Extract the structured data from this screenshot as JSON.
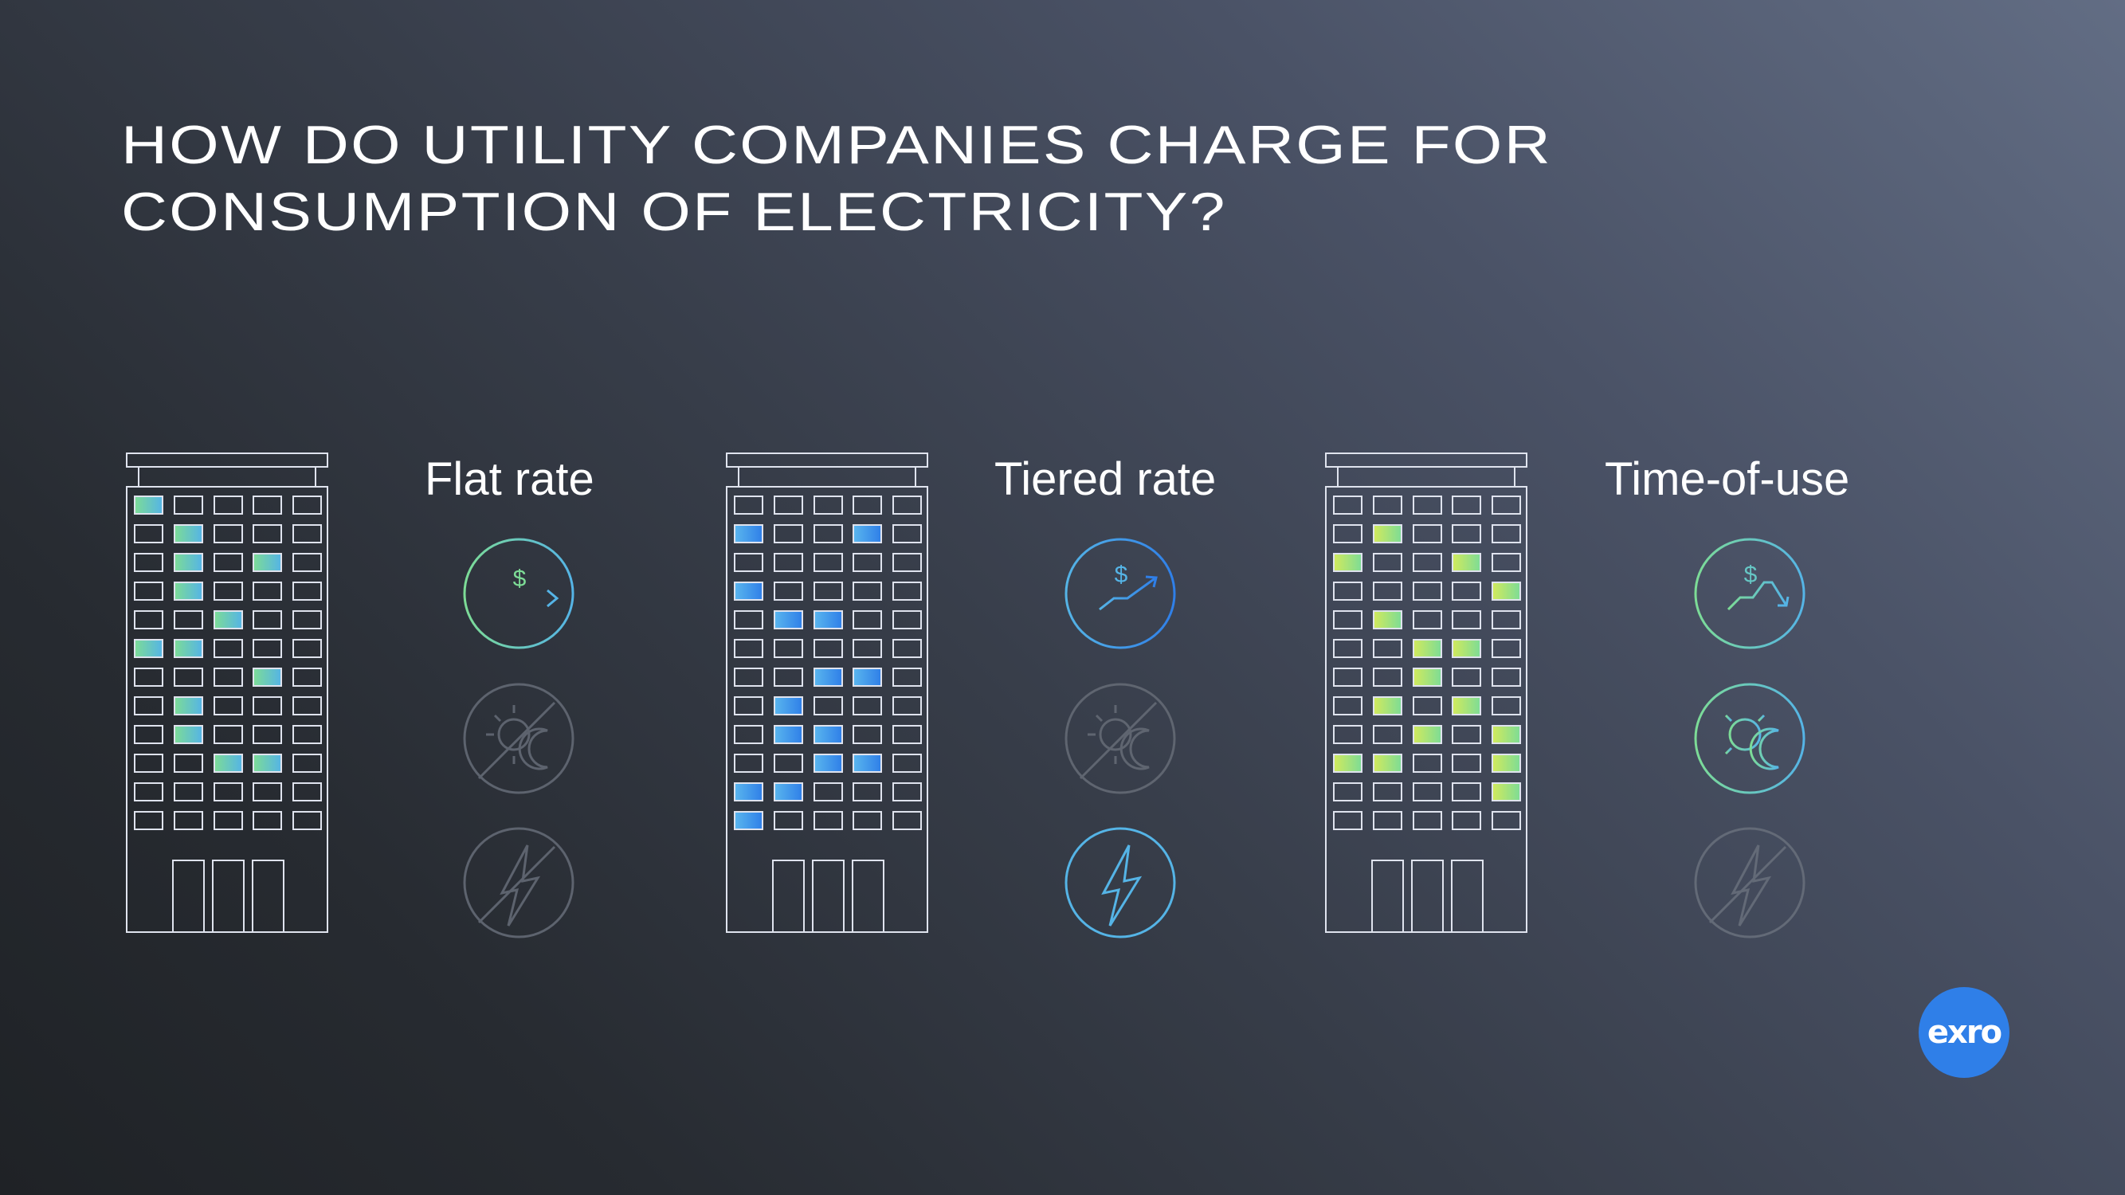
{
  "title": {
    "line1": "HOW DO UTILITY COMPANIES CHARGE FOR",
    "line2": "CONSUMPTION OF ELECTRICITY?"
  },
  "colors": {
    "bg_dark": "#1f2226",
    "bg_light": "#626d84",
    "outline": "#dfe3ee",
    "green": "#7ddc96",
    "cyan": "#55b4e6",
    "blue": "#2f7fe8",
    "lime": "#d2ea5c",
    "muted": "#5d636e"
  },
  "plans": [
    {
      "label": "Flat rate",
      "building_lit_windows": [
        [
          0,
          0
        ],
        [
          1,
          1
        ],
        [
          2,
          1
        ],
        [
          2,
          3
        ],
        [
          3,
          1
        ],
        [
          4,
          2
        ],
        [
          5,
          0
        ],
        [
          5,
          1
        ],
        [
          6,
          3
        ],
        [
          7,
          1
        ],
        [
          8,
          1
        ],
        [
          9,
          2
        ],
        [
          9,
          3
        ]
      ],
      "window_gradient": [
        "#7ddc96",
        "#55b4e6"
      ],
      "icons": [
        {
          "name": "flat-price-chart-icon",
          "active": true
        },
        {
          "name": "day-night-disabled-icon",
          "active": false
        },
        {
          "name": "demand-lightning-disabled-icon",
          "active": false
        }
      ]
    },
    {
      "label": "Tiered rate",
      "building_lit_windows": [
        [
          1,
          0
        ],
        [
          1,
          3
        ],
        [
          3,
          0
        ],
        [
          4,
          1
        ],
        [
          4,
          2
        ],
        [
          6,
          2
        ],
        [
          6,
          3
        ],
        [
          7,
          1
        ],
        [
          8,
          1
        ],
        [
          8,
          2
        ],
        [
          9,
          2
        ],
        [
          9,
          3
        ],
        [
          10,
          0
        ],
        [
          10,
          1
        ],
        [
          11,
          0
        ]
      ],
      "window_gradient": [
        "#5ab6ee",
        "#2f7fe8"
      ],
      "icons": [
        {
          "name": "rising-price-chart-icon",
          "active": true
        },
        {
          "name": "day-night-disabled-icon",
          "active": false
        },
        {
          "name": "demand-lightning-icon",
          "active": true
        }
      ]
    },
    {
      "label": "Time-of-use",
      "building_lit_windows": [
        [
          1,
          1
        ],
        [
          2,
          0
        ],
        [
          2,
          3
        ],
        [
          3,
          4
        ],
        [
          4,
          1
        ],
        [
          5,
          2
        ],
        [
          5,
          3
        ],
        [
          6,
          2
        ],
        [
          7,
          1
        ],
        [
          7,
          3
        ],
        [
          8,
          2
        ],
        [
          8,
          4
        ],
        [
          9,
          0
        ],
        [
          9,
          1
        ],
        [
          9,
          4
        ],
        [
          10,
          4
        ]
      ],
      "window_gradient": [
        "#d2ea5c",
        "#7ddc96"
      ],
      "icons": [
        {
          "name": "varying-price-chart-icon",
          "active": true
        },
        {
          "name": "day-night-icon",
          "active": true
        },
        {
          "name": "demand-lightning-disabled-icon",
          "active": false
        }
      ]
    }
  ],
  "logo": {
    "text": "exro"
  }
}
